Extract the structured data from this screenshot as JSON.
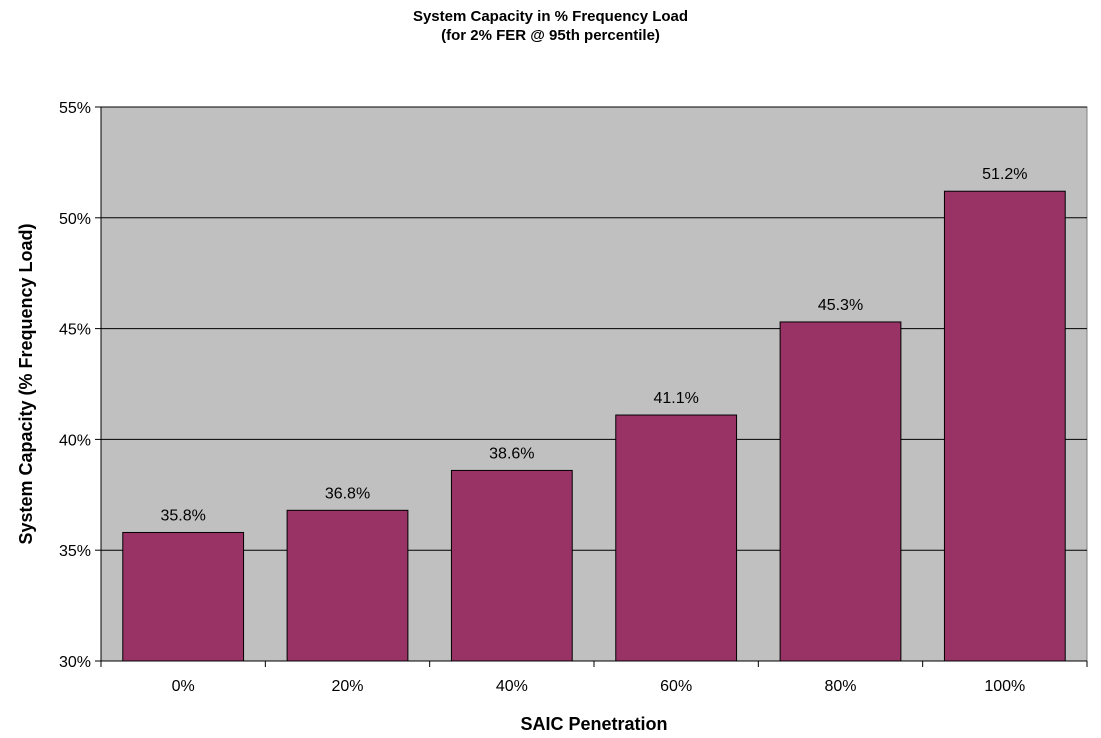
{
  "chart_data": {
    "type": "bar",
    "title": "System Capacity in % Frequency Load",
    "subtitle": "(for 2% FER @ 95th percentile)",
    "xlabel": "SAIC Penetration",
    "ylabel": "System Capacity (% Frequency Load)",
    "categories": [
      "0%",
      "20%",
      "40%",
      "60%",
      "80%",
      "100%"
    ],
    "values": [
      35.8,
      36.8,
      38.6,
      41.1,
      45.3,
      51.2
    ],
    "data_labels": [
      "35.8%",
      "36.8%",
      "38.6%",
      "41.1%",
      "45.3%",
      "51.2%"
    ],
    "ylim": [
      30,
      55
    ],
    "yticks": [
      30,
      35,
      40,
      45,
      50,
      55
    ],
    "ytick_labels": [
      "30%",
      "35%",
      "40%",
      "45%",
      "50%",
      "55%"
    ],
    "grid": true,
    "legend": "none",
    "colors": {
      "bar": "#993366",
      "plot_background": "#c0c0c0",
      "gridline": "#000000"
    }
  }
}
